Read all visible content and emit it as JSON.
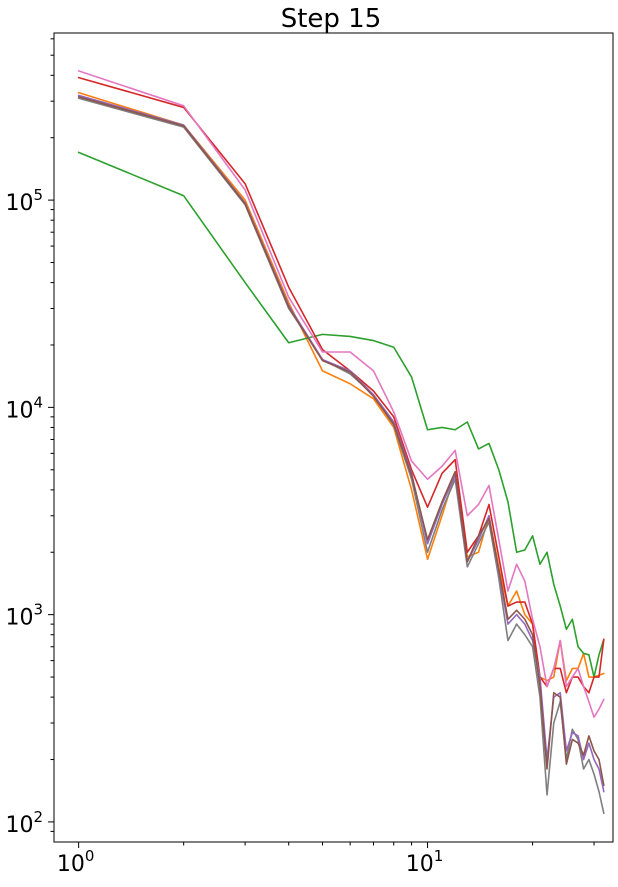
{
  "chart_data": {
    "type": "line",
    "title": "Step 15",
    "xlabel": "",
    "ylabel": "",
    "x_scale": "log",
    "y_scale": "log",
    "xlim": [
      0.85,
      34
    ],
    "ylim": [
      80,
      640000
    ],
    "grid": false,
    "x_ticks": [
      {
        "value": 1,
        "base": "10",
        "exp": "0"
      },
      {
        "value": 10,
        "base": "10",
        "exp": "1"
      }
    ],
    "y_ticks": [
      {
        "value": 100,
        "base": "10",
        "exp": "2"
      },
      {
        "value": 1000,
        "base": "10",
        "exp": "3"
      },
      {
        "value": 10000,
        "base": "10",
        "exp": "4"
      },
      {
        "value": 100000,
        "base": "10",
        "exp": "5"
      }
    ],
    "x": [
      1,
      2,
      3,
      4,
      5,
      6,
      7,
      8,
      9,
      10,
      11,
      12,
      13,
      14,
      15,
      16,
      17,
      18,
      19,
      20,
      21,
      22,
      23,
      24,
      25,
      26,
      27,
      28,
      29,
      30,
      31,
      32
    ],
    "series": [
      {
        "color": "#ff7f0e",
        "values": [
          330000,
          230000,
          100000,
          32000,
          15000,
          13000,
          11000,
          8000,
          4000,
          1850,
          3000,
          4800,
          1900,
          2000,
          3000,
          1700,
          1100,
          1300,
          1000,
          900,
          500,
          480,
          500,
          750,
          480,
          550,
          550,
          650,
          500,
          500,
          510,
          520
        ]
      },
      {
        "color": "#2ca02c",
        "values": [
          170000,
          105000,
          40000,
          20500,
          22500,
          22000,
          21000,
          19500,
          14000,
          7800,
          8000,
          7800,
          8500,
          6300,
          6700,
          5000,
          3500,
          2000,
          2050,
          2400,
          1750,
          2000,
          1400,
          1100,
          850,
          950,
          700,
          650,
          640,
          500,
          640,
          760
        ]
      },
      {
        "color": "#d62728",
        "values": [
          390000,
          280000,
          120000,
          38000,
          19000,
          15000,
          12000,
          9000,
          5000,
          3300,
          4800,
          5600,
          2000,
          2400,
          3400,
          1900,
          1100,
          1150,
          1150,
          900,
          500,
          450,
          550,
          550,
          420,
          500,
          500,
          450,
          420,
          500,
          500,
          760
        ]
      },
      {
        "color": "#e377c2",
        "values": [
          420000,
          285000,
          112000,
          34000,
          18500,
          18500,
          15000,
          9500,
          5500,
          4500,
          5200,
          6200,
          3000,
          3400,
          4200,
          2300,
          1300,
          1750,
          1450,
          950,
          700,
          450,
          550,
          750,
          450,
          500,
          550,
          450,
          380,
          320,
          350,
          390
        ]
      },
      {
        "color": "#7f7f7f",
        "values": [
          310000,
          225000,
          95000,
          30000,
          17000,
          14500,
          11500,
          8200,
          4500,
          2000,
          3200,
          4500,
          1700,
          2200,
          2800,
          1500,
          750,
          900,
          800,
          700,
          400,
          135,
          300,
          380,
          200,
          280,
          250,
          180,
          200,
          170,
          140,
          110
        ]
      },
      {
        "color": "#9467bd",
        "values": [
          320000,
          230000,
          97000,
          31000,
          17000,
          15000,
          11500,
          8500,
          4800,
          2200,
          3400,
          4700,
          1800,
          2300,
          3000,
          1600,
          900,
          1000,
          900,
          750,
          500,
          200,
          400,
          420,
          220,
          270,
          260,
          200,
          240,
          200,
          180,
          140
        ]
      },
      {
        "color": "#8c564b",
        "values": [
          315000,
          228000,
          96000,
          30500,
          16800,
          14800,
          11300,
          8300,
          4700,
          2300,
          3500,
          4900,
          1800,
          2400,
          2900,
          1650,
          950,
          1050,
          950,
          800,
          450,
          180,
          420,
          400,
          190,
          250,
          240,
          210,
          260,
          220,
          200,
          150
        ]
      }
    ]
  }
}
